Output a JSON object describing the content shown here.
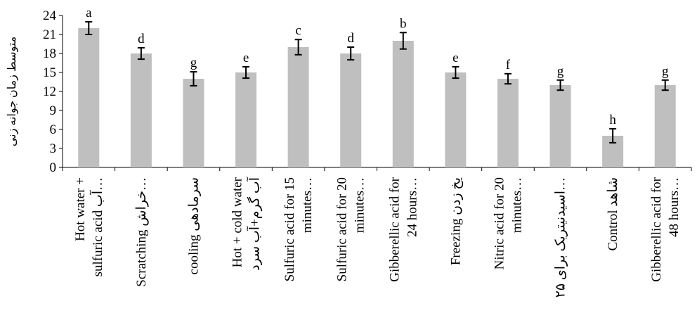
{
  "chart_data": {
    "type": "bar",
    "title": "",
    "xlabel": "",
    "ylabel": "متوسط زمان جوانه زنی",
    "ylim": [
      0,
      24
    ],
    "yticks": [
      0,
      3,
      6,
      9,
      12,
      15,
      18,
      21,
      24
    ],
    "grid": false,
    "legend": "none",
    "bar_color": "#bfbfbf",
    "error_bar_color": "#000000",
    "categories": [
      [
        "Hot water +",
        "sulfuric acid  آب…"
      ],
      [
        "Scratching  خراش…"
      ],
      [
        "cooling سرمادهی"
      ],
      [
        "Hot + cold water",
        "آب گرم+آب سرد"
      ],
      [
        "Sulfuric acid for 15",
        "minutes…"
      ],
      [
        "Sulfuric acid for 20",
        "minutes…"
      ],
      [
        "Gibberellic acid for",
        "24 hours…"
      ],
      [
        "Freezing یخ زدن"
      ],
      [
        "Nitric acid for 20",
        "minutes…"
      ],
      [
        "اسیدنیتریک برای ۲۵…"
      ],
      [
        "Control شاهد"
      ],
      [
        "Gibberellic acid for",
        "48 hours…"
      ]
    ],
    "values": [
      22,
      18,
      14,
      15,
      19,
      18,
      20,
      15,
      14,
      13,
      5,
      13
    ],
    "errors": [
      1.0,
      0.9,
      1.1,
      0.9,
      1.2,
      1.0,
      1.3,
      0.9,
      0.8,
      0.8,
      1.1,
      0.8
    ],
    "significance_letters": [
      "a",
      "d",
      "g",
      "e",
      "c",
      "d",
      "b",
      "e",
      "f",
      "g",
      "h",
      "g"
    ]
  }
}
